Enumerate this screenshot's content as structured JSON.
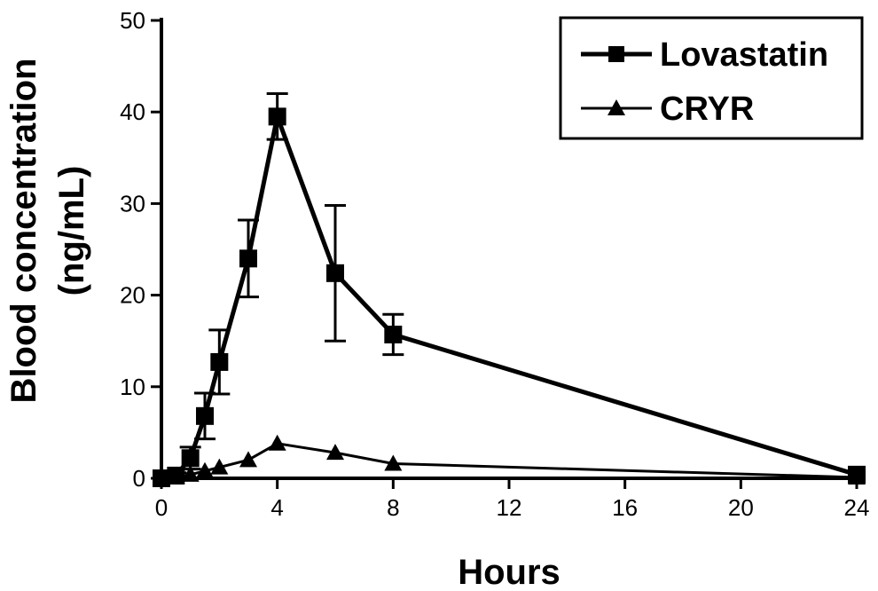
{
  "chart_data": {
    "type": "line",
    "title": "",
    "xlabel": "Hours",
    "ylabel_line1": "Blood concentration",
    "ylabel_line2": "(ng/mL)",
    "xlim": [
      0,
      24
    ],
    "ylim": [
      0,
      50
    ],
    "xticks": [
      0,
      4,
      8,
      12,
      16,
      20,
      24
    ],
    "yticks": [
      0,
      10,
      20,
      30,
      40,
      50
    ],
    "grid": false,
    "legend_position": "top-right",
    "series": [
      {
        "name": "Lovastatin",
        "marker": "square",
        "color": "#000000",
        "x": [
          0,
          0.5,
          1,
          1.5,
          2,
          3,
          4,
          6,
          8,
          24
        ],
        "y": [
          0,
          0.3,
          2.2,
          6.8,
          12.7,
          24.0,
          39.5,
          22.4,
          15.7,
          0.4
        ],
        "error": [
          0,
          0.3,
          1.2,
          2.5,
          3.5,
          4.2,
          2.5,
          7.4,
          2.2,
          0
        ]
      },
      {
        "name": "CRYR",
        "marker": "triangle",
        "color": "#000000",
        "x": [
          0,
          0.5,
          1,
          1.5,
          2,
          3,
          4,
          6,
          8,
          24
        ],
        "y": [
          0,
          0.1,
          0.4,
          0.8,
          1.2,
          2.0,
          3.8,
          2.8,
          1.6,
          0.1
        ]
      }
    ]
  }
}
